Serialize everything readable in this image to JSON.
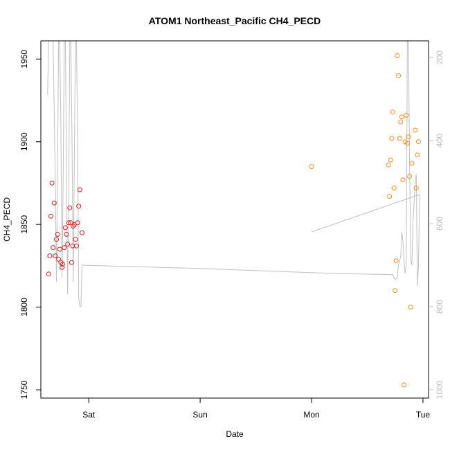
{
  "chart_data": {
    "type": "scatter",
    "title": "ATOM1 Northeast_Pacific CH4_PECD",
    "xlabel": "Date",
    "ylabel": "CH4_PECD",
    "x_tick_labels": [
      "Sat",
      "Sun",
      "Mon",
      "Tue"
    ],
    "x_tick_days": [
      1,
      2,
      3,
      4
    ],
    "xlim_days": [
      0.57,
      4.05
    ],
    "ylim": [
      1745,
      1961
    ],
    "y_ticks": [
      1750,
      1800,
      1850,
      1900,
      1950
    ],
    "right_axis": {
      "ylim": [
        1020,
        160
      ],
      "ticks": [
        200,
        400,
        600,
        800,
        1000
      ],
      "color": "#c0c0c0"
    },
    "grid": false,
    "legend": "none",
    "series": [
      {
        "color": "#e31a1c",
        "points": [
          [
            0.64,
            1820
          ],
          [
            0.65,
            1831
          ],
          [
            0.66,
            1855
          ],
          [
            0.67,
            1875
          ],
          [
            0.68,
            1836
          ],
          [
            0.69,
            1863
          ],
          [
            0.7,
            1831
          ],
          [
            0.71,
            1841
          ],
          [
            0.72,
            1844
          ],
          [
            0.73,
            1829
          ],
          [
            0.74,
            1835
          ],
          [
            0.75,
            1827
          ],
          [
            0.76,
            1824
          ],
          [
            0.765,
            1826
          ],
          [
            0.78,
            1836
          ],
          [
            0.79,
            1848
          ],
          [
            0.8,
            1844
          ],
          [
            0.81,
            1838
          ],
          [
            0.82,
            1851
          ],
          [
            0.83,
            1860
          ],
          [
            0.84,
            1851
          ],
          [
            0.845,
            1827
          ],
          [
            0.855,
            1837
          ],
          [
            0.86,
            1849
          ],
          [
            0.87,
            1850
          ],
          [
            0.88,
            1841
          ],
          [
            0.89,
            1837
          ],
          [
            0.9,
            1851
          ],
          [
            0.91,
            1861
          ],
          [
            0.92,
            1871
          ],
          [
            0.94,
            1845
          ]
        ]
      },
      {
        "color": "#ff8c1a",
        "points": [
          [
            3.0,
            1885
          ],
          [
            3.69,
            1886
          ],
          [
            3.7,
            1867
          ],
          [
            3.71,
            1889
          ],
          [
            3.72,
            1902
          ],
          [
            3.73,
            1918
          ],
          [
            3.74,
            1872
          ],
          [
            3.75,
            1810
          ],
          [
            3.76,
            1828
          ],
          [
            3.77,
            1952
          ],
          [
            3.78,
            1940
          ],
          [
            3.79,
            1902
          ],
          [
            3.8,
            1912
          ],
          [
            3.81,
            1915
          ],
          [
            3.82,
            1877
          ],
          [
            3.83,
            1753
          ],
          [
            3.84,
            1900
          ],
          [
            3.85,
            1916
          ],
          [
            3.86,
            1899
          ],
          [
            3.87,
            1903
          ],
          [
            3.88,
            1879
          ],
          [
            3.89,
            1800
          ],
          [
            3.9,
            1887
          ],
          [
            3.93,
            1907
          ],
          [
            3.94,
            1872
          ],
          [
            3.95,
            1892
          ],
          [
            3.96,
            1900
          ]
        ]
      }
    ],
    "altitude_line": {
      "color": "#c0c0c0",
      "right_axis_values": [
        [
          0.63,
          290
        ],
        [
          0.64,
          160
        ],
        [
          0.66,
          160
        ],
        [
          0.67,
          160
        ],
        [
          0.68,
          160
        ],
        [
          0.7,
          500
        ],
        [
          0.71,
          740
        ],
        [
          0.72,
          460
        ],
        [
          0.73,
          160
        ],
        [
          0.74,
          160
        ],
        [
          0.75,
          380
        ],
        [
          0.76,
          730
        ],
        [
          0.77,
          500
        ],
        [
          0.78,
          160
        ],
        [
          0.79,
          160
        ],
        [
          0.8,
          450
        ],
        [
          0.81,
          770
        ],
        [
          0.82,
          530
        ],
        [
          0.83,
          160
        ],
        [
          0.84,
          160
        ],
        [
          0.85,
          410
        ],
        [
          0.86,
          740
        ],
        [
          0.87,
          460
        ],
        [
          0.88,
          160
        ],
        [
          0.89,
          160
        ],
        [
          0.9,
          400
        ],
        [
          0.91,
          780
        ],
        [
          0.92,
          800
        ],
        [
          0.93,
          800
        ],
        [
          0.94,
          700
        ],
        [
          0.95,
          700
        ],
        [
          1.2,
          702
        ],
        [
          1.6,
          705
        ],
        [
          2.0,
          708
        ],
        [
          2.4,
          712
        ],
        [
          2.8,
          716
        ],
        [
          3.2,
          720
        ],
        [
          3.6,
          722
        ],
        [
          3.73,
          723
        ],
        [
          3.74,
          730
        ],
        [
          3.75,
          735
        ],
        [
          3.77,
          730
        ],
        [
          3.78,
          700
        ],
        [
          3.8,
          680
        ],
        [
          3.81,
          620
        ],
        [
          3.82,
          640
        ],
        [
          3.83,
          690
        ],
        [
          3.84,
          720
        ],
        [
          3.85,
          700
        ],
        [
          3.86,
          160
        ],
        [
          3.87,
          160
        ],
        [
          3.88,
          450
        ],
        [
          3.89,
          690
        ],
        [
          3.9,
          700
        ],
        [
          3.91,
          600
        ],
        [
          3.93,
          500
        ],
        [
          3.94,
          480
        ],
        [
          3.95,
          750
        ],
        [
          3.96,
          700
        ],
        [
          3.97,
          530
        ]
      ],
      "extra_segment": [
        [
          3.0,
          620
        ],
        [
          3.97,
          530
        ]
      ]
    }
  }
}
